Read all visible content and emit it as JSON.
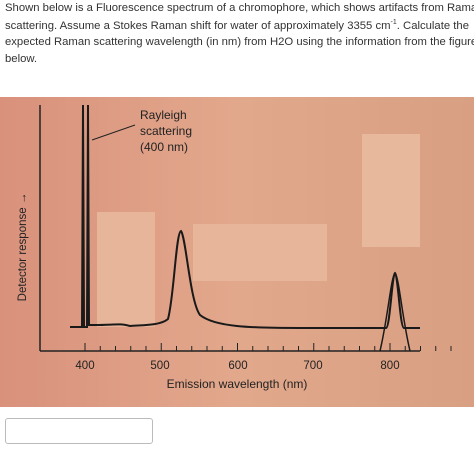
{
  "question": {
    "line1": "Shown below is a Fluorescence spectrum of a chromophore, which shows artifacts from Raman",
    "line2_before": "scattering. Assume a Stokes Raman shift for water of approximately 3355 cm",
    "line2_superscript": "-1",
    "line2_after": ". Calculate the",
    "line3": "expected Raman scattering wavelength (in nm) from H2O using the information from the figure",
    "line4": "below."
  },
  "figure": {
    "annotation": [
      "Rayleigh",
      "scattering",
      "(400 nm)"
    ],
    "y_axis_label": "Detector response →",
    "x_axis_label": "Emission wavelength (nm)",
    "tick_labels": [
      "400",
      "500",
      "600",
      "700",
      "800"
    ]
  }
}
